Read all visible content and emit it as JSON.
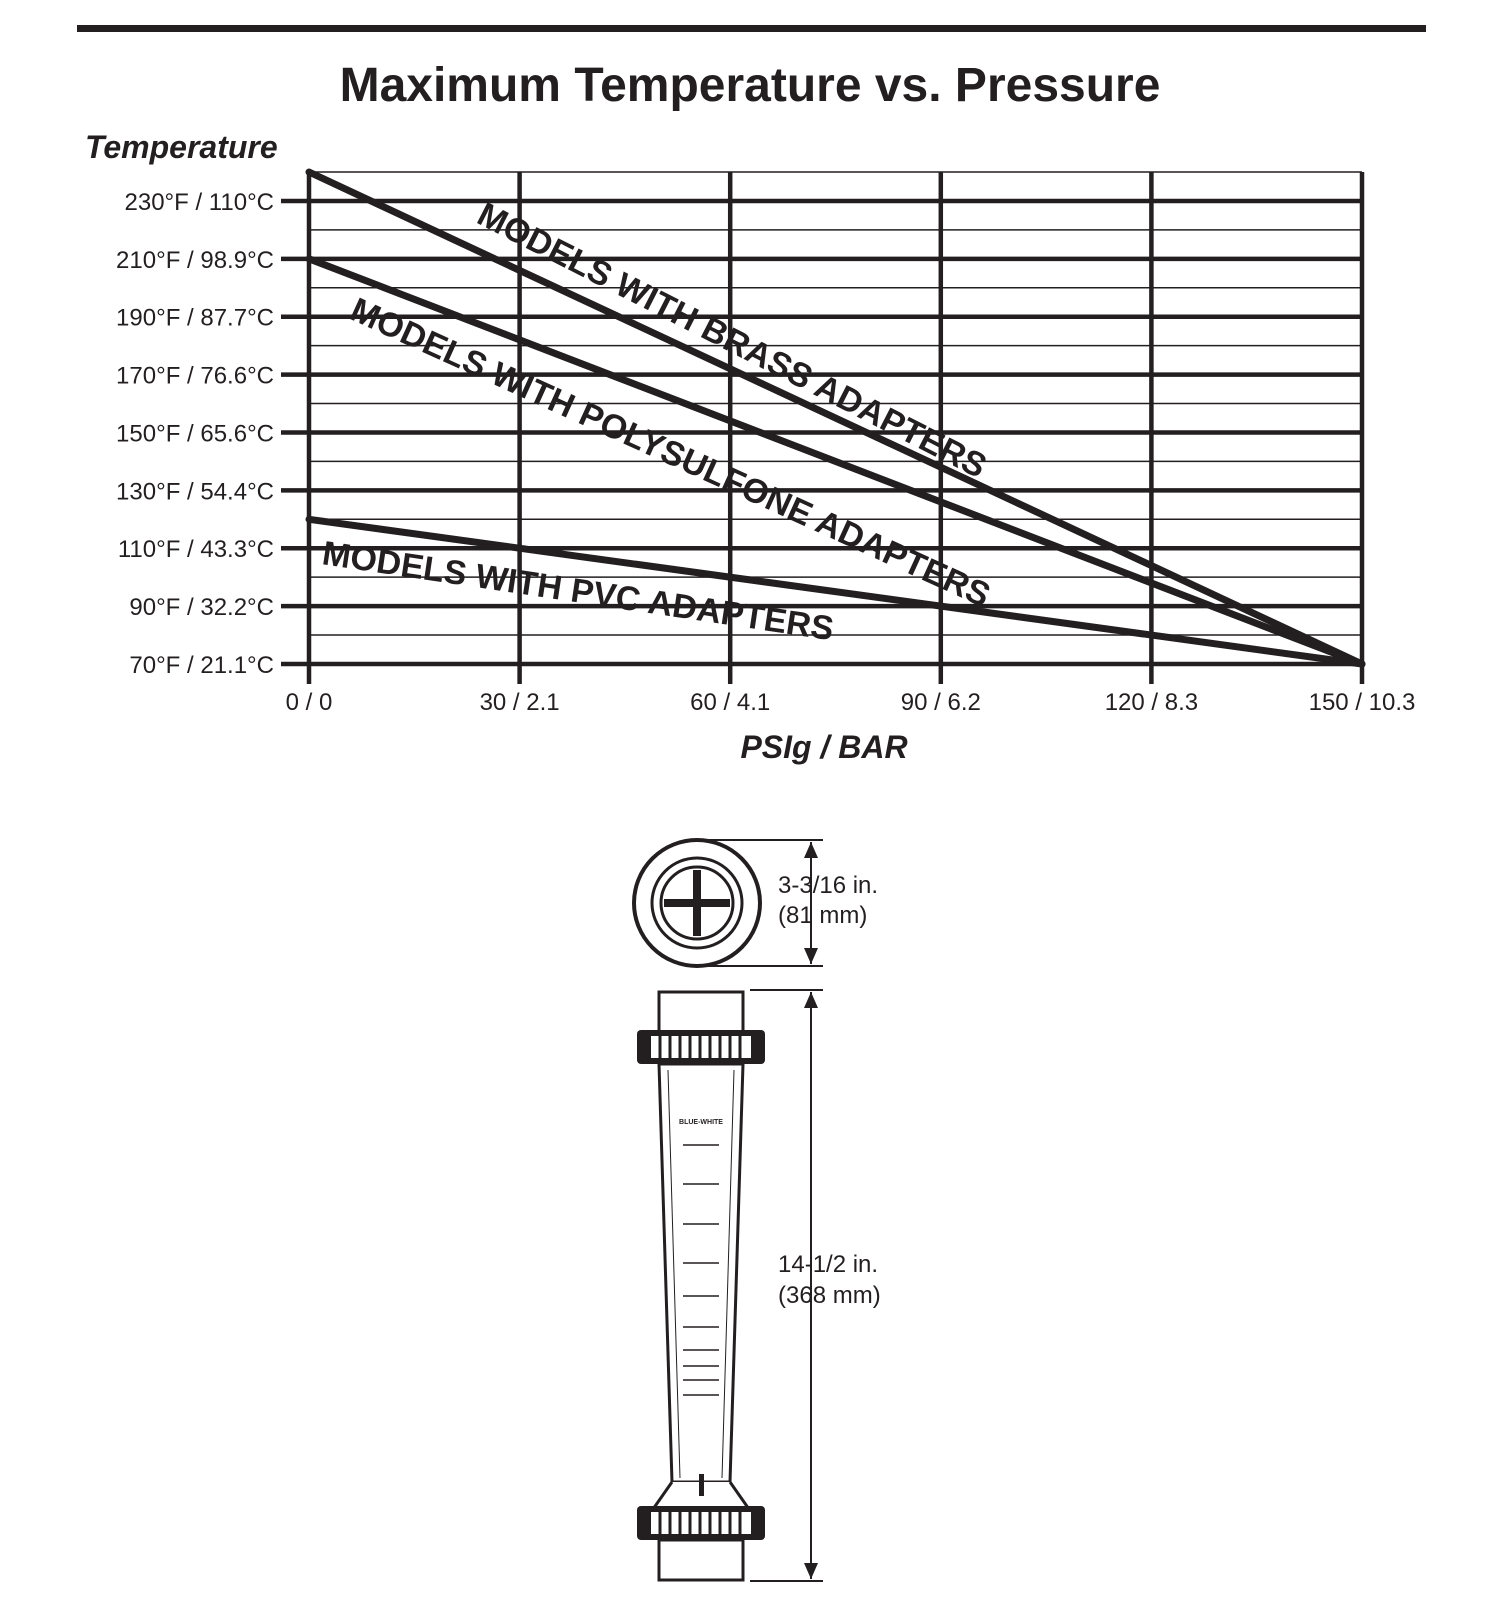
{
  "chart_data": {
    "type": "line",
    "title": "Maximum Temperature vs. Pressure",
    "ylabel": "Temperature",
    "xlabel": "PSIg / BAR",
    "x_ticks": [
      {
        "value": 0,
        "label": "0 / 0"
      },
      {
        "value": 30,
        "label": "30 / 2.1"
      },
      {
        "value": 60,
        "label": "60 / 4.1"
      },
      {
        "value": 90,
        "label": "90 / 6.2"
      },
      {
        "value": 120,
        "label": "120 / 8.3"
      },
      {
        "value": 150,
        "label": "150 / 10.3"
      }
    ],
    "y_ticks": [
      {
        "value": 230,
        "label": "230°F / 110°C"
      },
      {
        "value": 210,
        "label": "210°F / 98.9°C"
      },
      {
        "value": 190,
        "label": "190°F / 87.7°C"
      },
      {
        "value": 170,
        "label": "170°F / 76.6°C"
      },
      {
        "value": 150,
        "label": "150°F / 65.6°C"
      },
      {
        "value": 130,
        "label": "130°F / 54.4°C"
      },
      {
        "value": 110,
        "label": "110°F / 43.3°C"
      },
      {
        "value": 90,
        "label": "90°F / 32.2°C"
      },
      {
        "value": 70,
        "label": "70°F / 21.1°C"
      }
    ],
    "xlim": [
      0,
      150
    ],
    "ylim": [
      70,
      240
    ],
    "grid": true,
    "series": [
      {
        "name": "MODELS WITH BRASS ADAPTERS",
        "x": [
          0,
          150
        ],
        "y": [
          240,
          70
        ]
      },
      {
        "name": "MODELS WITH POLYSULFONE ADAPTERS",
        "x": [
          0,
          150
        ],
        "y": [
          210,
          70
        ]
      },
      {
        "name": "MODELS WITH PVC ADAPTERS",
        "x": [
          0,
          150
        ],
        "y": [
          120,
          70
        ]
      }
    ]
  },
  "drawing": {
    "brand": "BLUE-WHITE",
    "diameter_in": "3-3/16 in.",
    "diameter_mm": "(81 mm)",
    "length_in": "14-1/2 in.",
    "length_mm": "(368 mm)"
  }
}
